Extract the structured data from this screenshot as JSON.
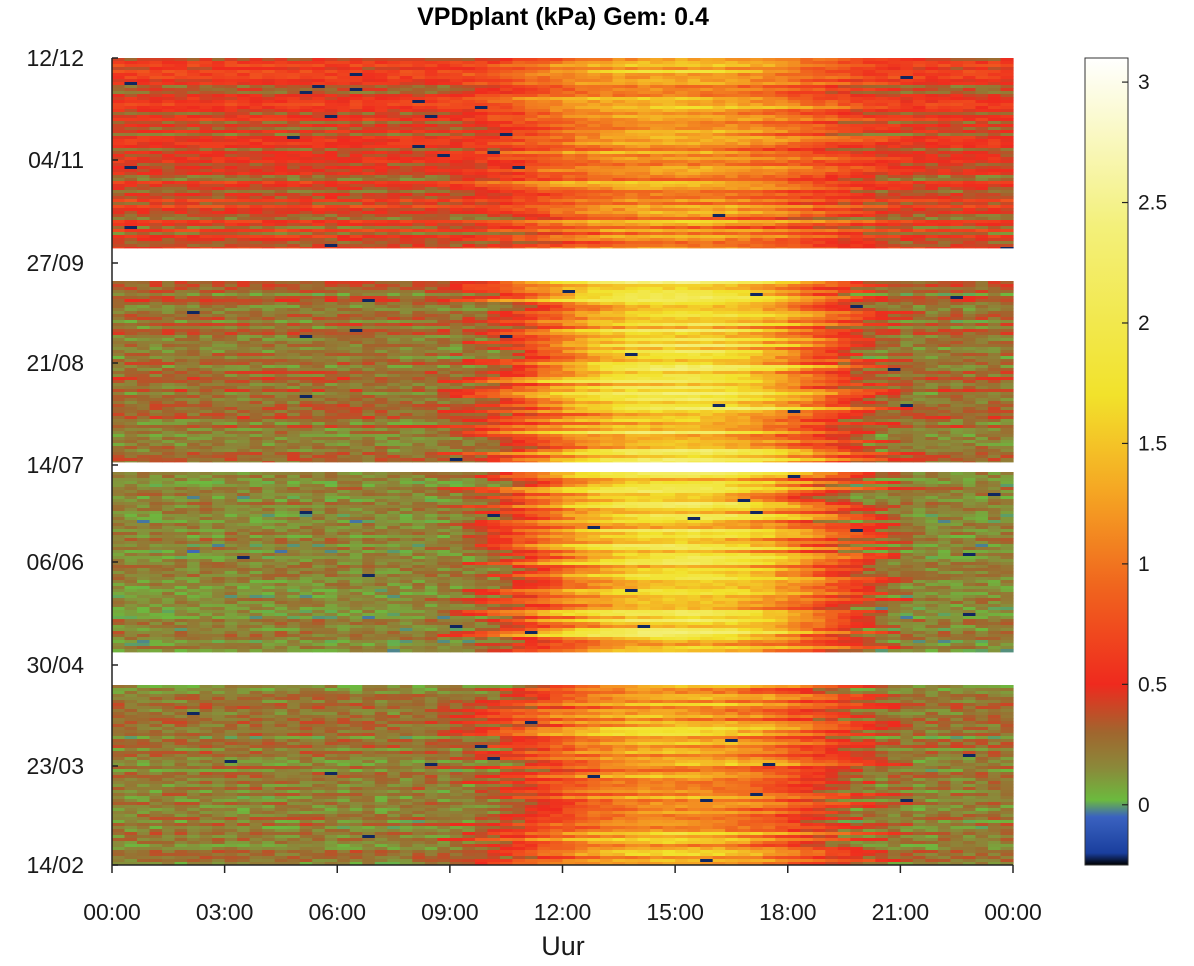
{
  "chart_data": {
    "type": "heatmap",
    "title": "VPDplant (kPa) Gem: 0.4",
    "xlabel": "Uur",
    "ylabel": "",
    "x_ticks": [
      "00:00",
      "03:00",
      "06:00",
      "09:00",
      "12:00",
      "15:00",
      "18:00",
      "21:00",
      "00:00"
    ],
    "x_range_hours": [
      0,
      24
    ],
    "y_ticks": [
      "12/12",
      "04/11",
      "27/09",
      "21/08",
      "14/07",
      "06/06",
      "30/04",
      "23/03",
      "14/02"
    ],
    "y_order": "top-to-bottom",
    "colorbar": {
      "ticks": [
        3,
        2.5,
        2,
        1.5,
        1,
        0.5,
        0
      ],
      "range": [
        -0.25,
        3.1
      ],
      "stops": [
        {
          "v": -0.25,
          "c": "#000000"
        },
        {
          "v": -0.2,
          "c": "#1a3f9e"
        },
        {
          "v": -0.05,
          "c": "#3a62c0"
        },
        {
          "v": 0.02,
          "c": "#6cba3e"
        },
        {
          "v": 0.15,
          "c": "#8a8a3a"
        },
        {
          "v": 0.3,
          "c": "#a0662e"
        },
        {
          "v": 0.5,
          "c": "#ef2a1e"
        },
        {
          "v": 0.9,
          "c": "#f0641e"
        },
        {
          "v": 1.3,
          "c": "#f5a623"
        },
        {
          "v": 1.7,
          "c": "#f2e22b"
        },
        {
          "v": 2.4,
          "c": "#f3f07a"
        },
        {
          "v": 3.1,
          "c": "#ffffff"
        }
      ]
    },
    "blocks": [
      {
        "from": "04/12",
        "to": "30/09",
        "peak_vpd": 1.0,
        "base_vpd": 0.55
      },
      {
        "from": "20/09",
        "to": "14/07",
        "peak_vpd": 2.0,
        "base_vpd": 0.3
      },
      {
        "from": "13/07",
        "to": "04/05",
        "peak_vpd": 1.9,
        "base_vpd": 0.2
      },
      {
        "from": "25/04",
        "to": "14/02",
        "peak_vpd": 1.4,
        "base_vpd": 0.25
      }
    ],
    "gaps": [
      "27/09",
      "14/07",
      "30/04"
    ],
    "mean_vpd": 0.4
  }
}
